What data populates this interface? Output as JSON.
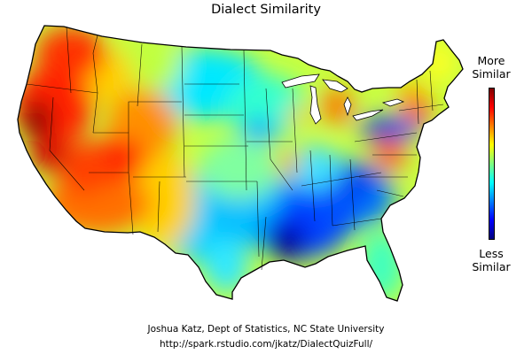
{
  "title": "Dialect Similarity",
  "legend": {
    "top_line1": "More",
    "top_line2": "Similar",
    "bottom_line1": "Less",
    "bottom_line2": "Similar",
    "colors": [
      "#00007f",
      "#0000ff",
      "#007fff",
      "#00ffff",
      "#7fff7f",
      "#ffff00",
      "#ff7f00",
      "#ff0000",
      "#7f0000"
    ]
  },
  "credit": {
    "author": "Joshua Katz, Dept of Statistics, NC State University",
    "url": "http://spark.rstudio.com/jkatz/DialectQuizFull/"
  },
  "map": {
    "colormap": "jet",
    "regions": "contiguous-us-states",
    "note_colors": {
      "very_similar": "#a00000",
      "similar": "#ff4400",
      "mid": "#c8ff30",
      "dissimilar": "#00d8ff",
      "very_dissimilar": "#000090"
    }
  }
}
